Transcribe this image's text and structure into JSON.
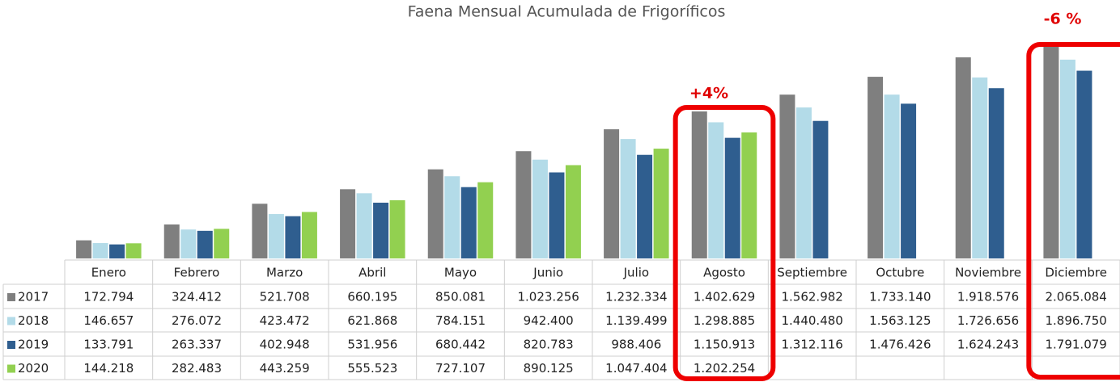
{
  "chart_data": {
    "type": "bar",
    "title": "Faena Mensual Acumulada de Frigoríficos",
    "categories": [
      "Enero",
      "Febrero",
      "Marzo",
      "Abril",
      "Mayo",
      "Junio",
      "Julio",
      "Agosto",
      "Septiembre",
      "Octubre",
      "Noviembre",
      "Diciembre"
    ],
    "series": [
      {
        "name": "2017",
        "color": "#7f7f7f",
        "values": [
          172794,
          324412,
          521708,
          660195,
          850081,
          1023256,
          1232334,
          1402629,
          1562982,
          1733140,
          1918576,
          2065084
        ],
        "value_labels": [
          "172.794",
          "324.412",
          "521.708",
          "660.195",
          "850.081",
          "1.023.256",
          "1.232.334",
          "1.402.629",
          "1.562.982",
          "1.733.140",
          "1.918.576",
          "2.065.084"
        ]
      },
      {
        "name": "2018",
        "color": "#b3dbe8",
        "values": [
          146657,
          276072,
          423472,
          621868,
          784151,
          942400,
          1139499,
          1298885,
          1440480,
          1563125,
          1726656,
          1896750
        ],
        "value_labels": [
          "146.657",
          "276.072",
          "423.472",
          "621.868",
          "784.151",
          "942.400",
          "1.139.499",
          "1.298.885",
          "1.440.480",
          "1.563.125",
          "1.726.656",
          "1.896.750"
        ]
      },
      {
        "name": "2019",
        "color": "#2f5e8f",
        "values": [
          133791,
          263337,
          402948,
          531956,
          680442,
          820783,
          988406,
          1150913,
          1312116,
          1476426,
          1624243,
          1791079
        ],
        "value_labels": [
          "133.791",
          "263.337",
          "402.948",
          "531.956",
          "680.442",
          "820.783",
          "988.406",
          "1.150.913",
          "1.312.116",
          "1.476.426",
          "1.624.243",
          "1.791.079"
        ]
      },
      {
        "name": "2020",
        "color": "#92d050",
        "values": [
          144218,
          282483,
          443259,
          555523,
          727107,
          890125,
          1047404,
          1202254,
          null,
          null,
          null,
          null
        ],
        "value_labels": [
          "144.218",
          "282.483",
          "443.259",
          "555.523",
          "727.107",
          "890.125",
          "1.047.404",
          "1.202.254",
          null,
          null,
          null,
          null
        ]
      }
    ],
    "annotations": [
      "+4%",
      "-6 %"
    ]
  }
}
